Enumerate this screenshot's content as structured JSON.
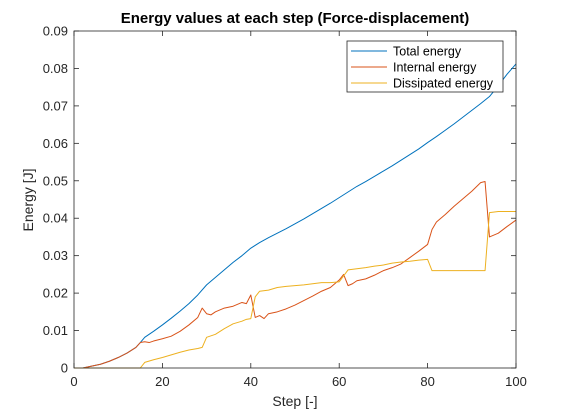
{
  "chart_data": {
    "type": "line",
    "title": "Energy values at each step (Force-displacement)",
    "xlabel": "Step [-]",
    "ylabel": "Energy [J]",
    "xlim": [
      0,
      100
    ],
    "ylim": [
      0,
      0.09
    ],
    "xticks": [
      0,
      20,
      40,
      60,
      80,
      100
    ],
    "yticks": [
      0,
      0.01,
      0.02,
      0.03,
      0.04,
      0.05,
      0.06,
      0.07,
      0.08,
      0.09
    ],
    "xtick_labels": [
      "0",
      "20",
      "40",
      "60",
      "80",
      "100"
    ],
    "ytick_labels": [
      "0",
      "0.01",
      "0.02",
      "0.03",
      "0.04",
      "0.05",
      "0.06",
      "0.07",
      "0.08",
      "0.09"
    ],
    "grid": false,
    "legend_position": "top-right",
    "series": [
      {
        "name": "Total energy",
        "color": "#0072BD",
        "points": [
          [
            0,
            0
          ],
          [
            2,
            0
          ],
          [
            4,
            0.0005
          ],
          [
            6,
            0.001
          ],
          [
            8,
            0.0018
          ],
          [
            10,
            0.0028
          ],
          [
            12,
            0.004
          ],
          [
            14,
            0.0055
          ],
          [
            15,
            0.0068
          ],
          [
            16,
            0.0082
          ],
          [
            18,
            0.0098
          ],
          [
            20,
            0.0115
          ],
          [
            22,
            0.0133
          ],
          [
            24,
            0.0152
          ],
          [
            26,
            0.0172
          ],
          [
            28,
            0.0195
          ],
          [
            30,
            0.0222
          ],
          [
            32,
            0.0242
          ],
          [
            34,
            0.0262
          ],
          [
            36,
            0.0282
          ],
          [
            38,
            0.03
          ],
          [
            40,
            0.032
          ],
          [
            42,
            0.0335
          ],
          [
            44,
            0.0348
          ],
          [
            46,
            0.036
          ],
          [
            48,
            0.0372
          ],
          [
            50,
            0.0385
          ],
          [
            52,
            0.0398
          ],
          [
            54,
            0.0412
          ],
          [
            56,
            0.0426
          ],
          [
            58,
            0.044
          ],
          [
            60,
            0.0455
          ],
          [
            62,
            0.047
          ],
          [
            64,
            0.0485
          ],
          [
            66,
            0.0498
          ],
          [
            68,
            0.0512
          ],
          [
            70,
            0.0526
          ],
          [
            72,
            0.054
          ],
          [
            74,
            0.0555
          ],
          [
            76,
            0.057
          ],
          [
            78,
            0.0585
          ],
          [
            80,
            0.0602
          ],
          [
            82,
            0.0618
          ],
          [
            84,
            0.0635
          ],
          [
            86,
            0.0652
          ],
          [
            88,
            0.067
          ],
          [
            90,
            0.0688
          ],
          [
            92,
            0.0706
          ],
          [
            94,
            0.0725
          ],
          [
            96,
            0.0754
          ],
          [
            98,
            0.0785
          ],
          [
            100,
            0.0812
          ]
        ]
      },
      {
        "name": "Internal energy",
        "color": "#D95319",
        "points": [
          [
            0,
            0
          ],
          [
            2,
            0
          ],
          [
            4,
            0.0005
          ],
          [
            6,
            0.001
          ],
          [
            8,
            0.0018
          ],
          [
            10,
            0.0028
          ],
          [
            12,
            0.004
          ],
          [
            14,
            0.0055
          ],
          [
            15,
            0.0068
          ],
          [
            16,
            0.007
          ],
          [
            17,
            0.0068
          ],
          [
            18,
            0.0072
          ],
          [
            20,
            0.0078
          ],
          [
            22,
            0.0085
          ],
          [
            24,
            0.0098
          ],
          [
            26,
            0.0115
          ],
          [
            28,
            0.0135
          ],
          [
            29,
            0.016
          ],
          [
            30,
            0.0145
          ],
          [
            31,
            0.0142
          ],
          [
            32,
            0.015
          ],
          [
            34,
            0.016
          ],
          [
            36,
            0.0165
          ],
          [
            38,
            0.0175
          ],
          [
            39,
            0.0172
          ],
          [
            40,
            0.0195
          ],
          [
            41,
            0.0135
          ],
          [
            42,
            0.014
          ],
          [
            43,
            0.0132
          ],
          [
            44,
            0.0145
          ],
          [
            46,
            0.015
          ],
          [
            48,
            0.0158
          ],
          [
            50,
            0.0168
          ],
          [
            52,
            0.018
          ],
          [
            54,
            0.0192
          ],
          [
            56,
            0.0205
          ],
          [
            58,
            0.0215
          ],
          [
            60,
            0.0235
          ],
          [
            61,
            0.025
          ],
          [
            62,
            0.022
          ],
          [
            63,
            0.0225
          ],
          [
            64,
            0.0233
          ],
          [
            66,
            0.0238
          ],
          [
            68,
            0.0248
          ],
          [
            70,
            0.026
          ],
          [
            72,
            0.0268
          ],
          [
            74,
            0.0278
          ],
          [
            76,
            0.0295
          ],
          [
            78,
            0.0312
          ],
          [
            80,
            0.033
          ],
          [
            81,
            0.037
          ],
          [
            82,
            0.039
          ],
          [
            84,
            0.041
          ],
          [
            86,
            0.0432
          ],
          [
            88,
            0.0452
          ],
          [
            90,
            0.0472
          ],
          [
            92,
            0.0495
          ],
          [
            93,
            0.0498
          ],
          [
            94,
            0.035
          ],
          [
            96,
            0.036
          ],
          [
            98,
            0.0378
          ],
          [
            100,
            0.0395
          ]
        ]
      },
      {
        "name": "Dissipated energy",
        "color": "#EDB120",
        "points": [
          [
            0,
            0
          ],
          [
            15,
            0
          ],
          [
            16,
            0.0015
          ],
          [
            18,
            0.0022
          ],
          [
            20,
            0.0028
          ],
          [
            22,
            0.0035
          ],
          [
            24,
            0.0042
          ],
          [
            26,
            0.0048
          ],
          [
            28,
            0.0052
          ],
          [
            29,
            0.0055
          ],
          [
            30,
            0.0082
          ],
          [
            32,
            0.009
          ],
          [
            34,
            0.0105
          ],
          [
            36,
            0.0118
          ],
          [
            38,
            0.0125
          ],
          [
            39,
            0.013
          ],
          [
            40,
            0.0132
          ],
          [
            41,
            0.019
          ],
          [
            42,
            0.0205
          ],
          [
            44,
            0.0208
          ],
          [
            46,
            0.0215
          ],
          [
            48,
            0.0218
          ],
          [
            50,
            0.022
          ],
          [
            52,
            0.0222
          ],
          [
            54,
            0.0225
          ],
          [
            56,
            0.0228
          ],
          [
            58,
            0.0228
          ],
          [
            60,
            0.023
          ],
          [
            62,
            0.0262
          ],
          [
            64,
            0.0265
          ],
          [
            66,
            0.0268
          ],
          [
            68,
            0.0272
          ],
          [
            70,
            0.0275
          ],
          [
            72,
            0.028
          ],
          [
            74,
            0.0283
          ],
          [
            76,
            0.0285
          ],
          [
            78,
            0.0288
          ],
          [
            80,
            0.029
          ],
          [
            81,
            0.026
          ],
          [
            84,
            0.026
          ],
          [
            88,
            0.026
          ],
          [
            90,
            0.026
          ],
          [
            93,
            0.026
          ],
          [
            94,
            0.0415
          ],
          [
            96,
            0.0418
          ],
          [
            98,
            0.0418
          ],
          [
            100,
            0.0418
          ]
        ]
      }
    ]
  }
}
